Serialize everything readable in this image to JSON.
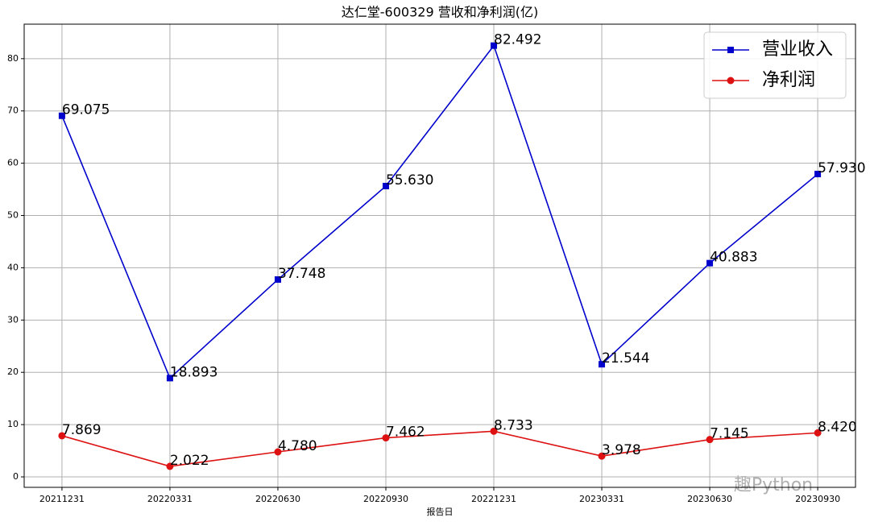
{
  "chart_data": {
    "type": "line",
    "title": "达仁堂-600329 营收和净利润(亿)",
    "x_label": "报告日",
    "watermark": "趣Python",
    "categories": [
      "20211231",
      "20220331",
      "20220630",
      "20220930",
      "20221231",
      "20230331",
      "20230630",
      "20230930"
    ],
    "series": [
      {
        "name": "营业收入",
        "color": "#0000cc",
        "marker": "square",
        "values": [
          69.075,
          18.893,
          37.748,
          55.63,
          82.492,
          21.544,
          40.883,
          57.93
        ],
        "value_labels": [
          "69.075",
          "18.893",
          "37.748",
          "55.630",
          "82.492",
          "21.544",
          "40.883",
          "57.930"
        ]
      },
      {
        "name": "净利润",
        "color": "#dd1111",
        "marker": "circle",
        "values": [
          7.869,
          2.022,
          4.78,
          7.462,
          8.733,
          3.978,
          7.145,
          8.42
        ],
        "value_labels": [
          "7.869",
          "2.022",
          "4.780",
          "7.462",
          "8.733",
          "3.978",
          "7.145",
          "8.420"
        ]
      }
    ],
    "ylim": [
      -2,
      86.6
    ],
    "yticks": [
      0,
      10,
      20,
      30,
      40,
      50,
      60,
      70,
      80
    ],
    "grid": true,
    "legend": "upper right"
  }
}
